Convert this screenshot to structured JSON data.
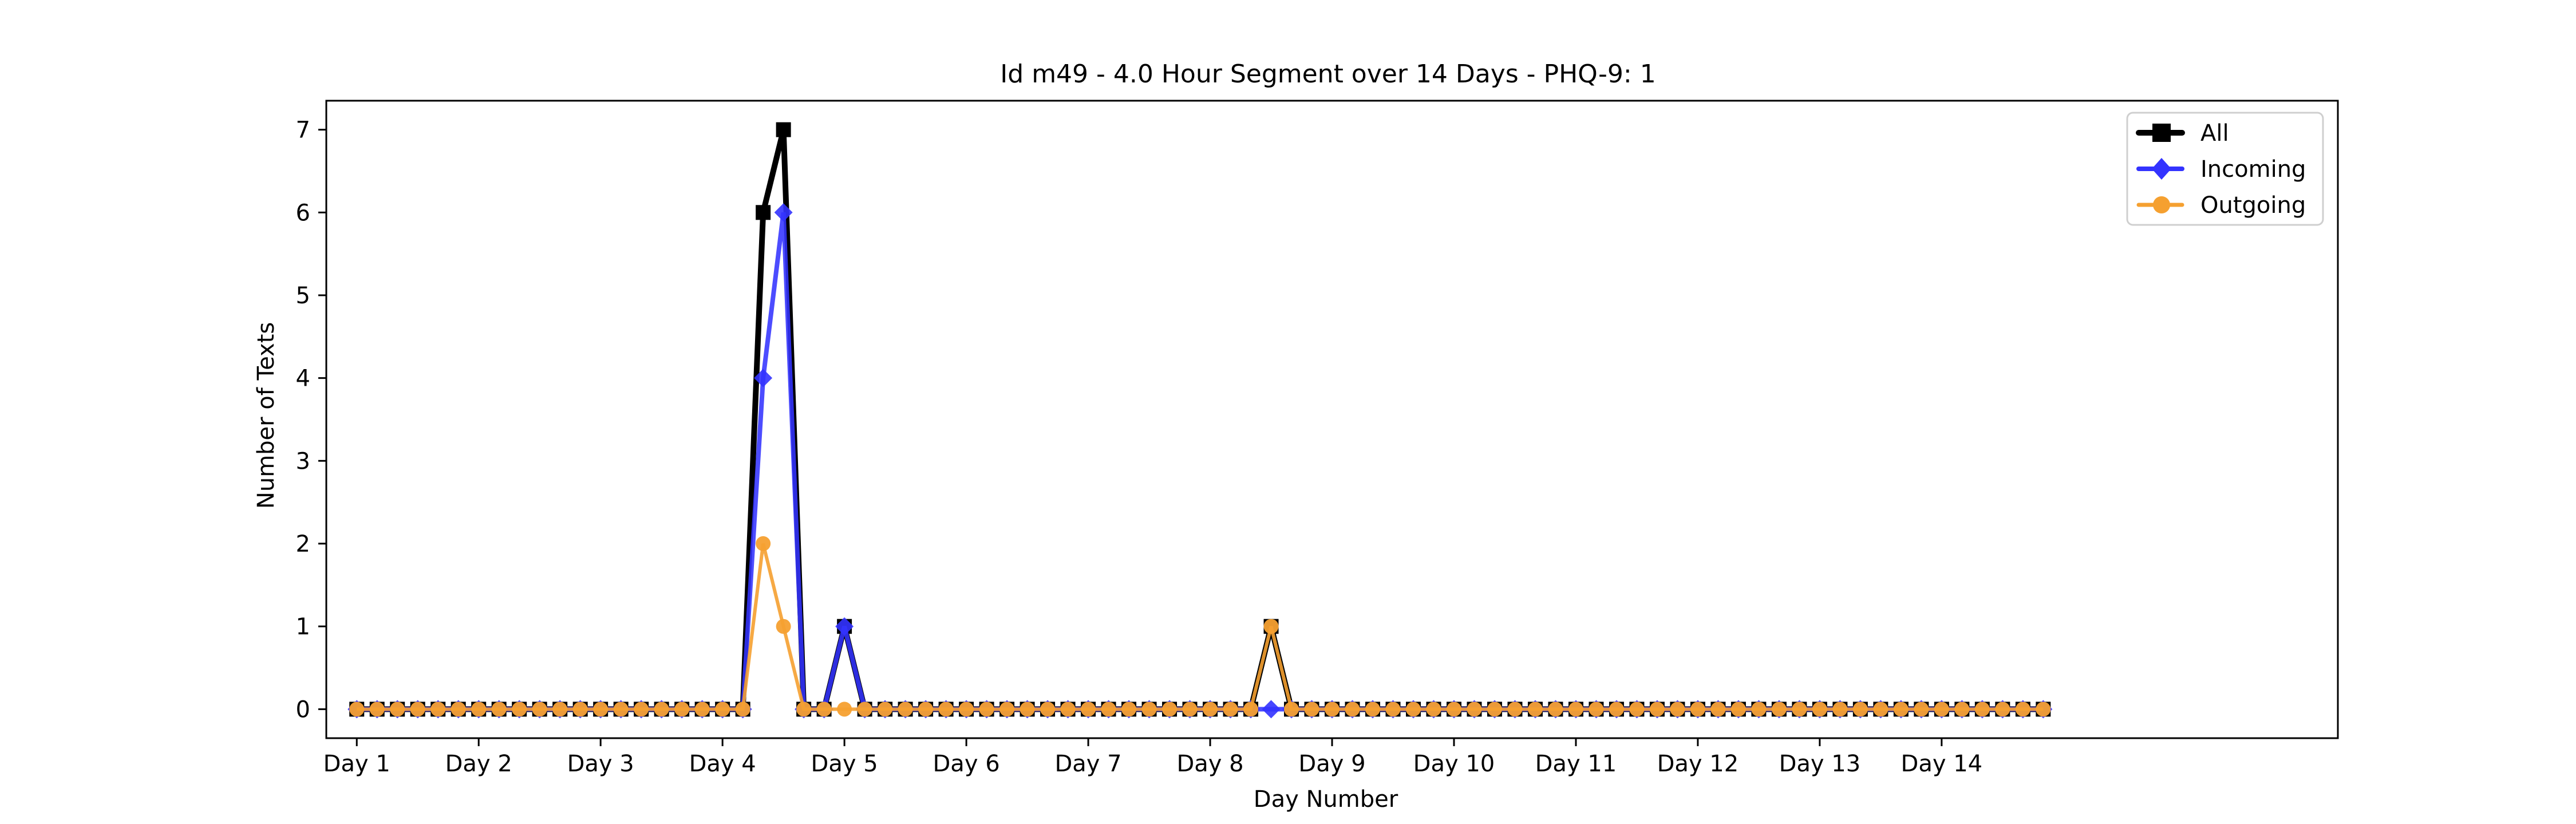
{
  "chart_data": {
    "type": "line",
    "title": "Id m49 - 4.0 Hour Segment over 14 Days - PHQ-9: 1",
    "xlabel": "Day Number",
    "ylabel": "Number of Texts",
    "xlim": [
      -0.25,
      16.25
    ],
    "ylim": [
      -0.35,
      7.35
    ],
    "xticks": [
      {
        "label": "Day 1",
        "value": 0
      },
      {
        "label": "Day 2",
        "value": 1
      },
      {
        "label": "Day 3",
        "value": 2
      },
      {
        "label": "Day 4",
        "value": 3
      },
      {
        "label": "Day 5",
        "value": 4
      },
      {
        "label": "Day 6",
        "value": 5
      },
      {
        "label": "Day 7",
        "value": 6
      },
      {
        "label": "Day 8",
        "value": 7
      },
      {
        "label": "Day 9",
        "value": 8
      },
      {
        "label": "Day 10",
        "value": 9
      },
      {
        "label": "Day 11",
        "value": 10
      },
      {
        "label": "Day 12",
        "value": 11
      },
      {
        "label": "Day 13",
        "value": 12
      },
      {
        "label": "Day 14",
        "value": 13
      }
    ],
    "yticks": [
      0,
      1,
      2,
      3,
      4,
      5,
      6,
      7
    ],
    "legend": {
      "position": "top-right",
      "items": [
        {
          "label": "All",
          "color": "#000000",
          "marker": "square"
        },
        {
          "label": "Incoming",
          "color": "#3333ff",
          "marker": "diamond"
        },
        {
          "label": "Outgoing",
          "color": "#f5a030",
          "marker": "circle"
        }
      ]
    },
    "series": [
      {
        "name": "All",
        "color": "#000000",
        "marker": "square",
        "x": [
          0,
          0.1667,
          0.3333,
          0.5,
          0.6667,
          0.8333,
          1,
          1.1667,
          1.3333,
          1.5,
          1.6667,
          1.8333,
          2,
          2.1667,
          2.3333,
          2.5,
          2.6667,
          2.8333,
          3,
          3.1667,
          3.3333,
          3.5,
          3.6667,
          3.8333,
          4,
          4.1667,
          4.3333,
          4.5,
          4.6667,
          4.8333,
          5,
          5.1667,
          5.3333,
          5.5,
          5.6667,
          5.8333,
          6,
          6.1667,
          6.3333,
          6.5,
          6.6667,
          6.8333,
          7,
          7.1667,
          7.3333,
          7.5,
          7.6667,
          7.8333,
          8,
          8.1667,
          8.3333,
          8.5,
          8.6667,
          8.8333,
          9,
          9.1667,
          9.3333,
          9.5,
          9.6667,
          9.8333,
          10,
          10.1667,
          10.3333,
          10.5,
          10.6667,
          10.8333,
          11,
          11.1667,
          11.3333,
          11.5,
          11.6667,
          11.8333,
          12,
          12.1667,
          12.3333,
          12.5,
          12.6667,
          12.8333,
          13,
          13.1667,
          13.3333,
          13.5,
          13.6667,
          13.8333
        ],
        "values": [
          0,
          0,
          0,
          0,
          0,
          0,
          0,
          0,
          0,
          0,
          0,
          0,
          0,
          0,
          0,
          0,
          0,
          0,
          0,
          0,
          6,
          7,
          0,
          0,
          1,
          0,
          0,
          0,
          0,
          0,
          0,
          0,
          0,
          0,
          0,
          0,
          0,
          0,
          0,
          0,
          0,
          0,
          0,
          0,
          0,
          1,
          0,
          0,
          0,
          0,
          0,
          0,
          0,
          0,
          0,
          0,
          0,
          0,
          0,
          0,
          0,
          0,
          0,
          0,
          0,
          0,
          0,
          0,
          0,
          0,
          0,
          0,
          0,
          0,
          0,
          0,
          0,
          0,
          0,
          0,
          0,
          0,
          0,
          0
        ]
      },
      {
        "name": "Incoming",
        "color": "#3333ff",
        "marker": "diamond",
        "x": [
          0,
          0.1667,
          0.3333,
          0.5,
          0.6667,
          0.8333,
          1,
          1.1667,
          1.3333,
          1.5,
          1.6667,
          1.8333,
          2,
          2.1667,
          2.3333,
          2.5,
          2.6667,
          2.8333,
          3,
          3.1667,
          3.3333,
          3.5,
          3.6667,
          3.8333,
          4,
          4.1667,
          4.3333,
          4.5,
          4.6667,
          4.8333,
          5,
          5.1667,
          5.3333,
          5.5,
          5.6667,
          5.8333,
          6,
          6.1667,
          6.3333,
          6.5,
          6.6667,
          6.8333,
          7,
          7.1667,
          7.3333,
          7.5,
          7.6667,
          7.8333,
          8,
          8.1667,
          8.3333,
          8.5,
          8.6667,
          8.8333,
          9,
          9.1667,
          9.3333,
          9.5,
          9.6667,
          9.8333,
          10,
          10.1667,
          10.3333,
          10.5,
          10.6667,
          10.8333,
          11,
          11.1667,
          11.3333,
          11.5,
          11.6667,
          11.8333,
          12,
          12.1667,
          12.3333,
          12.5,
          12.6667,
          12.8333,
          13,
          13.1667,
          13.3333,
          13.5,
          13.6667,
          13.8333
        ],
        "values": [
          0,
          0,
          0,
          0,
          0,
          0,
          0,
          0,
          0,
          0,
          0,
          0,
          0,
          0,
          0,
          0,
          0,
          0,
          0,
          0,
          4,
          6,
          0,
          0,
          1,
          0,
          0,
          0,
          0,
          0,
          0,
          0,
          0,
          0,
          0,
          0,
          0,
          0,
          0,
          0,
          0,
          0,
          0,
          0,
          0,
          0,
          0,
          0,
          0,
          0,
          0,
          0,
          0,
          0,
          0,
          0,
          0,
          0,
          0,
          0,
          0,
          0,
          0,
          0,
          0,
          0,
          0,
          0,
          0,
          0,
          0,
          0,
          0,
          0,
          0,
          0,
          0,
          0,
          0,
          0,
          0,
          0,
          0,
          0
        ]
      },
      {
        "name": "Outgoing",
        "color": "#f5a030",
        "marker": "circle",
        "x": [
          0,
          0.1667,
          0.3333,
          0.5,
          0.6667,
          0.8333,
          1,
          1.1667,
          1.3333,
          1.5,
          1.6667,
          1.8333,
          2,
          2.1667,
          2.3333,
          2.5,
          2.6667,
          2.8333,
          3,
          3.1667,
          3.3333,
          3.5,
          3.6667,
          3.8333,
          4,
          4.1667,
          4.3333,
          4.5,
          4.6667,
          4.8333,
          5,
          5.1667,
          5.3333,
          5.5,
          5.6667,
          5.8333,
          6,
          6.1667,
          6.3333,
          6.5,
          6.6667,
          6.8333,
          7,
          7.1667,
          7.3333,
          7.5,
          7.6667,
          7.8333,
          8,
          8.1667,
          8.3333,
          8.5,
          8.6667,
          8.8333,
          9,
          9.1667,
          9.3333,
          9.5,
          9.6667,
          9.8333,
          10,
          10.1667,
          10.3333,
          10.5,
          10.6667,
          10.8333,
          11,
          11.1667,
          11.3333,
          11.5,
          11.6667,
          11.8333,
          12,
          12.1667,
          12.3333,
          12.5,
          12.6667,
          12.8333,
          13,
          13.1667,
          13.3333,
          13.5,
          13.6667,
          13.8333
        ],
        "values": [
          0,
          0,
          0,
          0,
          0,
          0,
          0,
          0,
          0,
          0,
          0,
          0,
          0,
          0,
          0,
          0,
          0,
          0,
          0,
          0,
          2,
          1,
          0,
          0,
          0,
          0,
          0,
          0,
          0,
          0,
          0,
          0,
          0,
          0,
          0,
          0,
          0,
          0,
          0,
          0,
          0,
          0,
          0,
          0,
          0,
          1,
          0,
          0,
          0,
          0,
          0,
          0,
          0,
          0,
          0,
          0,
          0,
          0,
          0,
          0,
          0,
          0,
          0,
          0,
          0,
          0,
          0,
          0,
          0,
          0,
          0,
          0,
          0,
          0,
          0,
          0,
          0,
          0,
          0,
          0,
          0,
          0,
          0,
          0
        ]
      }
    ]
  }
}
